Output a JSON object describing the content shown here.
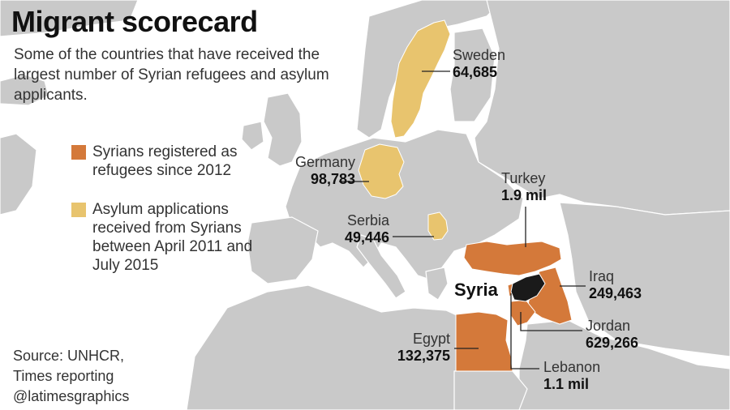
{
  "title": "Migrant scorecard",
  "subtitle": "Some of the countries that have received the largest number of Syrian refugees and asylum applicants.",
  "legend": {
    "refugee": "Syrians registered as refugees since 2012",
    "asylum": "Asylum applications received from Syrians between April 2011 and July 2015"
  },
  "colors": {
    "refugee": "#d4793a",
    "asylum": "#e8c46e",
    "origin": "#1a1a1a",
    "land": "#c9c9c9",
    "water": "#ffffff"
  },
  "origin": {
    "name": "Syria"
  },
  "countries": [
    {
      "id": "sweden",
      "name": "Sweden",
      "value": "64,685",
      "category": "asylum"
    },
    {
      "id": "germany",
      "name": "Germany",
      "value": "98,783",
      "category": "asylum"
    },
    {
      "id": "serbia",
      "name": "Serbia",
      "value": "49,446",
      "category": "asylum"
    },
    {
      "id": "turkey",
      "name": "Turkey",
      "value": "1.9 mil",
      "category": "refugee"
    },
    {
      "id": "iraq",
      "name": "Iraq",
      "value": "249,463",
      "category": "refugee"
    },
    {
      "id": "jordan",
      "name": "Jordan",
      "value": "629,266",
      "category": "refugee"
    },
    {
      "id": "egypt",
      "name": "Egypt",
      "value": "132,375",
      "category": "refugee"
    },
    {
      "id": "lebanon",
      "name": "Lebanon",
      "value": "1.1 mil",
      "category": "refugee"
    }
  ],
  "source": {
    "line1": "Source: UNHCR,",
    "line2": "Times reporting",
    "line3": "@latimesgraphics"
  }
}
